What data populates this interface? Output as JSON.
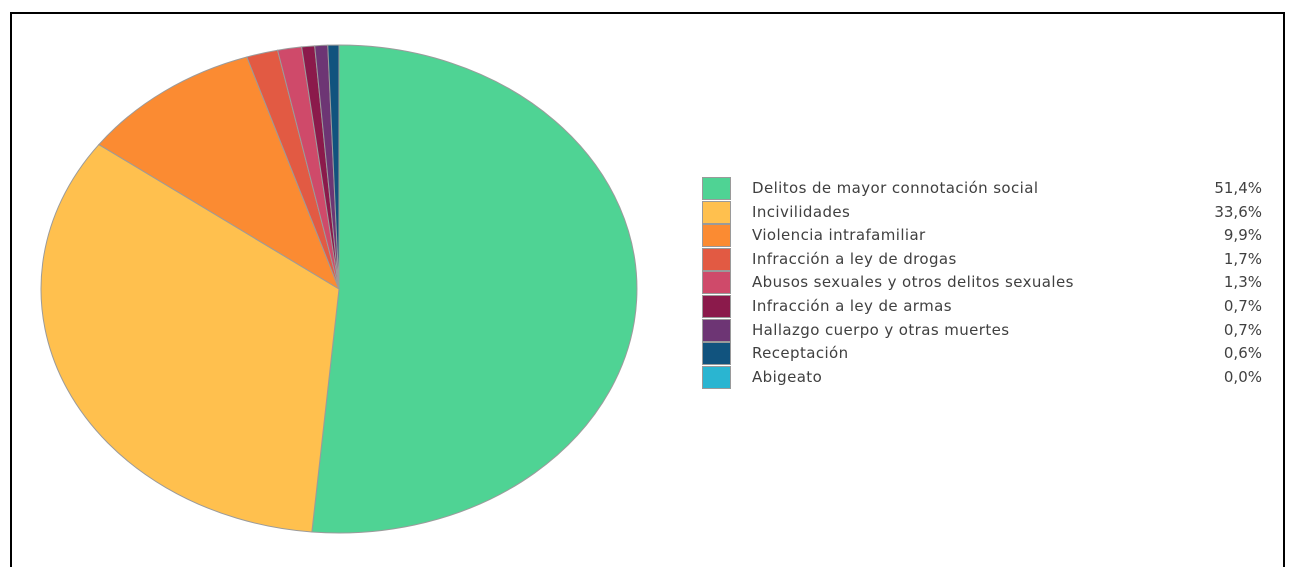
{
  "top_caption": "",
  "chart_data": {
    "type": "pie",
    "title": "",
    "categories": [
      "Delitos de mayor connotación social",
      "Incivilidades",
      "Violencia intrafamiliar",
      "Infracción a ley de drogas",
      "Abusos sexuales y otros delitos sexuales",
      "Infracción a ley de armas",
      "Hallazgo cuerpo y otras muertes",
      "Receptación",
      "Abigeato"
    ],
    "values": [
      51.4,
      33.6,
      9.9,
      1.7,
      1.3,
      0.7,
      0.7,
      0.6,
      0.0
    ],
    "value_labels": [
      "51,4%",
      "33,6%",
      "9,9%",
      "1,7%",
      "1,3%",
      "0,7%",
      "0,7%",
      "0,6%",
      "0,0%"
    ],
    "colors": [
      "#4fd394",
      "#ffc04e",
      "#fb8b32",
      "#e25a43",
      "#cf4a6a",
      "#8b1a4b",
      "#6d3574",
      "#11537e",
      "#2ab5d1"
    ],
    "legend_position": "right",
    "start_angle": "12 o'clock",
    "direction": "clockwise"
  }
}
